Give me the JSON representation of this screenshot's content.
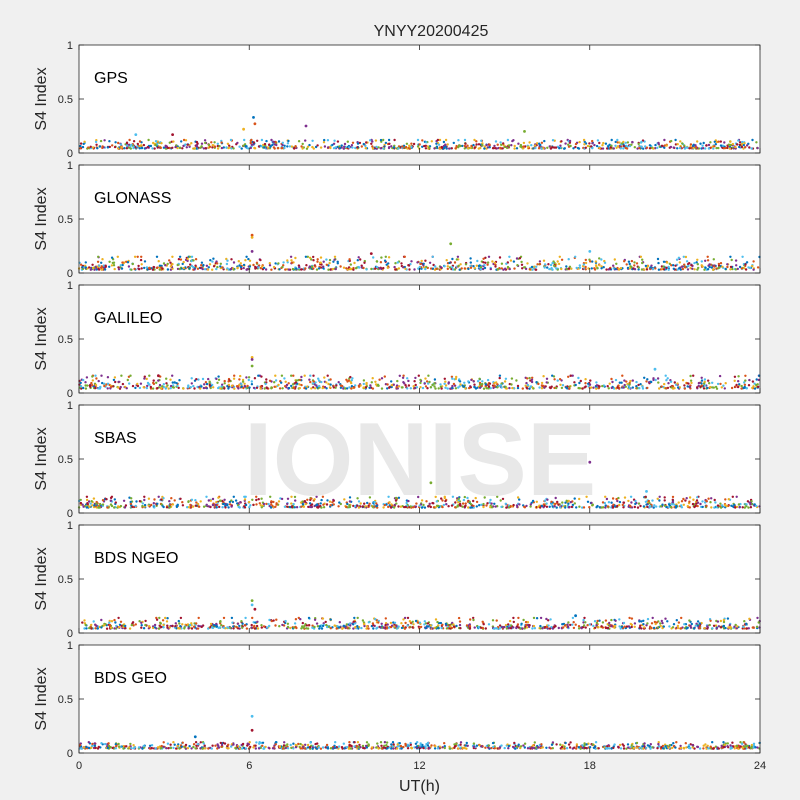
{
  "figure_title": "YNYY20200425",
  "watermark": "IONISE",
  "series_colors": [
    "#0072bd",
    "#d95319",
    "#edb120",
    "#7e2f8e",
    "#77ac30",
    "#4dbeee",
    "#a2142f"
  ],
  "chart_data": [
    {
      "type": "scatter",
      "panel_label": "GPS",
      "ylabel": "S4 Index",
      "xlabel": "",
      "xlim": [
        0,
        24
      ],
      "ylim": [
        0,
        1
      ],
      "x_ticks": [
        0,
        6,
        12,
        18,
        24
      ],
      "y_ticks": [
        0,
        0.5,
        1
      ],
      "show_x_tick_labels": false,
      "baseline_range": [
        0.04,
        0.12
      ],
      "spikes": [
        [
          6.15,
          0.33
        ],
        [
          6.2,
          0.27
        ],
        [
          5.8,
          0.22
        ],
        [
          8.0,
          0.25
        ],
        [
          15.7,
          0.2
        ],
        [
          2.0,
          0.17
        ],
        [
          3.3,
          0.17
        ]
      ]
    },
    {
      "type": "scatter",
      "panel_label": "GLONASS",
      "ylabel": "S4 Index",
      "xlabel": "",
      "xlim": [
        0,
        24
      ],
      "ylim": [
        0,
        1
      ],
      "x_ticks": [
        0,
        6,
        12,
        18,
        24
      ],
      "y_ticks": [
        0,
        0.5,
        1
      ],
      "show_x_tick_labels": false,
      "baseline_range": [
        0.03,
        0.15
      ],
      "spikes": [
        [
          6.1,
          0.35
        ],
        [
          6.1,
          0.33
        ],
        [
          6.1,
          0.2
        ],
        [
          13.1,
          0.27
        ],
        [
          18.0,
          0.2
        ],
        [
          10.3,
          0.18
        ]
      ]
    },
    {
      "type": "scatter",
      "panel_label": "GALILEO",
      "ylabel": "S4 Index",
      "xlabel": "",
      "xlim": [
        0,
        24
      ],
      "ylim": [
        0,
        1
      ],
      "x_ticks": [
        0,
        6,
        12,
        18,
        24
      ],
      "y_ticks": [
        0,
        0.5,
        1
      ],
      "show_x_tick_labels": false,
      "baseline_range": [
        0.04,
        0.16
      ],
      "spikes": [
        [
          6.1,
          0.33
        ],
        [
          6.1,
          0.31
        ],
        [
          6.1,
          0.25
        ],
        [
          20.3,
          0.22
        ],
        [
          2.8,
          0.16
        ]
      ]
    },
    {
      "type": "scatter",
      "panel_label": "SBAS",
      "ylabel": "S4 Index",
      "xlabel": "",
      "xlim": [
        0,
        24
      ],
      "ylim": [
        0,
        1
      ],
      "x_ticks": [
        0,
        6,
        12,
        18,
        24
      ],
      "y_ticks": [
        0,
        0.5,
        1
      ],
      "show_x_tick_labels": false,
      "baseline_range": [
        0.05,
        0.15
      ],
      "spikes": [
        [
          18.0,
          0.47
        ],
        [
          12.4,
          0.28
        ],
        [
          20.0,
          0.2
        ]
      ]
    },
    {
      "type": "scatter",
      "panel_label": "BDS NGEO",
      "ylabel": "S4 Index",
      "xlabel": "",
      "xlim": [
        0,
        24
      ],
      "ylim": [
        0,
        1
      ],
      "x_ticks": [
        0,
        6,
        12,
        18,
        24
      ],
      "y_ticks": [
        0,
        0.5,
        1
      ],
      "show_x_tick_labels": false,
      "baseline_range": [
        0.04,
        0.14
      ],
      "spikes": [
        [
          6.1,
          0.3
        ],
        [
          6.1,
          0.26
        ],
        [
          6.2,
          0.22
        ],
        [
          17.5,
          0.16
        ]
      ]
    },
    {
      "type": "scatter",
      "panel_label": "BDS GEO",
      "ylabel": "S4 Index",
      "xlabel": "UT(h)",
      "xlim": [
        0,
        24
      ],
      "ylim": [
        0,
        1
      ],
      "x_ticks": [
        0,
        6,
        12,
        18,
        24
      ],
      "y_ticks": [
        0,
        0.5,
        1
      ],
      "show_x_tick_labels": true,
      "baseline_range": [
        0.04,
        0.1
      ],
      "spikes": [
        [
          6.1,
          0.34
        ],
        [
          6.1,
          0.21
        ],
        [
          4.1,
          0.15
        ]
      ]
    }
  ]
}
